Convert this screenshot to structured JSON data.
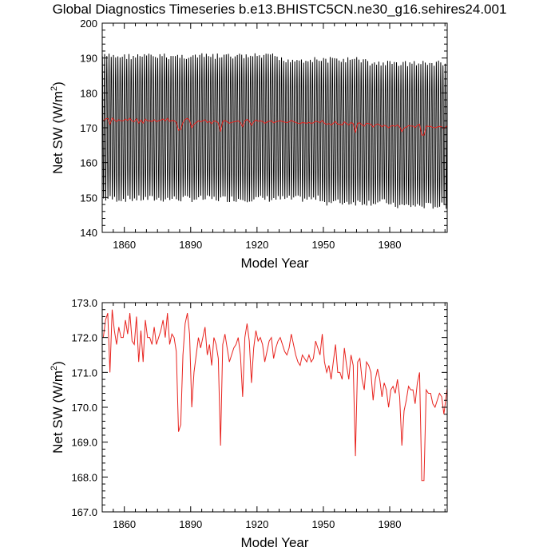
{
  "title": "Global Diagnostics Timeseries b.e13.BHISTC5CN.ne30_g16.sehires24.001",
  "colors": {
    "monthly": "#000000",
    "annual": "#e8231e",
    "axes": "#000000"
  },
  "chart_data": [
    {
      "type": "line",
      "title": "Global Diagnostics Timeseries b.e13.BHISTC5CN.ne30_g16.sehires24.001",
      "xlabel": "Model Year",
      "ylabel_main": "Net SW (W/m",
      "ylabel_sup": "2",
      "ylabel_tail": ")",
      "xlim": [
        1850,
        2006
      ],
      "ylim": [
        140,
        200
      ],
      "xticks": [
        1860,
        1890,
        1920,
        1950,
        1980
      ],
      "xtick_labels": [
        "1860",
        "1890",
        "1920",
        "1950",
        "1980"
      ],
      "yticks": [
        140,
        150,
        160,
        170,
        180,
        190,
        200
      ],
      "ytick_labels": [
        "140",
        "150",
        "160",
        "170",
        "180",
        "190",
        "200"
      ],
      "series": [
        {
          "name": "monthly",
          "color": "#000000",
          "start_year": 1850,
          "years": 156,
          "max_by_decade": [
            192,
            192,
            192,
            192,
            192,
            192,
            192,
            192,
            191,
            191,
            191,
            191,
            190,
            190,
            190,
            190
          ],
          "min_by_decade": [
            148,
            148,
            148,
            148,
            148,
            148,
            148,
            148,
            148,
            148,
            147,
            147,
            147,
            146,
            146,
            146
          ]
        },
        {
          "name": "annual",
          "color": "#e8231e",
          "ref": "annual_mean"
        }
      ]
    },
    {
      "type": "line",
      "xlabel": "Model Year",
      "ylabel_main": "Net SW (W/m",
      "ylabel_sup": "2",
      "ylabel_tail": ")",
      "xlim": [
        1850,
        2006
      ],
      "ylim": [
        167,
        173
      ],
      "xticks": [
        1860,
        1890,
        1920,
        1950,
        1980
      ],
      "xtick_labels": [
        "1860",
        "1890",
        "1920",
        "1950",
        "1980"
      ],
      "yticks": [
        167,
        168,
        169,
        170,
        171,
        172,
        173
      ],
      "ytick_labels": [
        "167.0",
        "168.0",
        "169.0",
        "170.0",
        "171.0",
        "172.0",
        "173.0"
      ],
      "series": [
        {
          "name": "annual",
          "color": "#e8231e",
          "ref": "annual_mean"
        }
      ]
    }
  ],
  "annual_mean": {
    "start_year": 1850,
    "values": [
      172.0,
      172.5,
      172.7,
      171.0,
      172.8,
      172.2,
      171.8,
      172.3,
      172.0,
      172.0,
      172.5,
      172.1,
      172.7,
      171.9,
      171.8,
      172.6,
      171.3,
      172.2,
      171.3,
      172.5,
      172.0,
      172.0,
      171.8,
      172.3,
      171.8,
      172.0,
      172.2,
      172.5,
      172.0,
      172.7,
      171.8,
      172.1,
      172.0,
      171.6,
      169.3,
      169.5,
      171.5,
      172.4,
      172.7,
      172.1,
      170.0,
      171.0,
      171.5,
      172.0,
      171.7,
      172.0,
      172.3,
      171.5,
      171.8,
      171.2,
      172.0,
      171.8,
      171.4,
      168.9,
      171.8,
      172.1,
      171.7,
      171.3,
      171.5,
      171.7,
      171.8,
      172.0,
      171.5,
      170.3,
      172.0,
      172.4,
      171.9,
      170.7,
      171.7,
      172.2,
      171.9,
      172.0,
      171.8,
      171.3,
      171.6,
      171.9,
      172.0,
      171.4,
      171.7,
      171.9,
      172.0,
      171.8,
      171.6,
      171.5,
      171.7,
      172.1,
      171.8,
      171.5,
      171.3,
      171.2,
      171.5,
      171.4,
      171.3,
      171.5,
      171.3,
      171.4,
      171.9,
      171.7,
      171.5,
      172.1,
      171.3,
      171.0,
      171.2,
      170.8,
      171.3,
      171.8,
      171.0,
      171.0,
      170.8,
      171.7,
      171.2,
      170.8,
      171.5,
      171.2,
      168.6,
      171.3,
      171.4,
      170.8,
      170.5,
      171.3,
      171.2,
      171.0,
      170.2,
      170.8,
      171.1,
      170.8,
      170.3,
      170.7,
      170.5,
      170.0,
      170.5,
      170.6,
      170.4,
      170.8,
      170.3,
      168.9,
      169.9,
      170.2,
      170.6,
      170.5,
      170.5,
      170.1,
      170.7,
      171.0,
      167.9,
      167.9,
      170.5,
      170.4,
      170.4,
      170.1,
      170.0,
      170.2,
      170.4,
      170.3,
      169.8,
      170.3,
      170.8,
      170.5
    ]
  }
}
